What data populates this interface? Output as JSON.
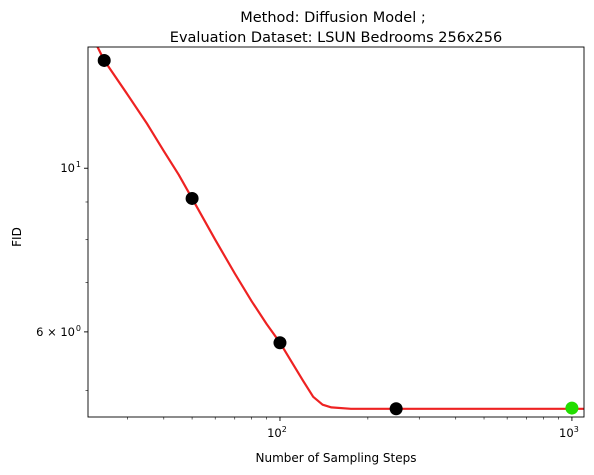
{
  "chart_data": {
    "type": "scatter",
    "title_line1": "Method: Diffusion Model ;",
    "title_line2": "Evaluation Dataset: LSUN Bedrooms 256x256",
    "xlabel": "Number of Sampling Steps",
    "ylabel": "FID",
    "x_scale": "log",
    "y_scale": "log",
    "xlim": [
      22,
      1100
    ],
    "ylim": [
      4.6,
      14.6
    ],
    "x_ticks": [
      {
        "value": 100,
        "base": "10",
        "exp": "2"
      },
      {
        "value": 1000,
        "base": "10",
        "exp": "3"
      }
    ],
    "y_ticks": [
      {
        "value": 10,
        "label": "10",
        "exp": "1"
      },
      {
        "value": 6,
        "label": "6 × 10",
        "exp": "0"
      }
    ],
    "points": [
      {
        "x": 25,
        "y": 14.0,
        "color": "#000000"
      },
      {
        "x": 50,
        "y": 9.1,
        "color": "#000000"
      },
      {
        "x": 100,
        "y": 5.8,
        "color": "#000000"
      },
      {
        "x": 250,
        "y": 4.72,
        "color": "#000000"
      },
      {
        "x": 1000,
        "y": 4.73,
        "color": "#22dd00"
      }
    ],
    "fit_curve": {
      "color": "#ee2222",
      "points": [
        [
          22,
          15.5
        ],
        [
          25,
          14.0
        ],
        [
          30,
          12.6
        ],
        [
          35,
          11.5
        ],
        [
          40,
          10.55
        ],
        [
          45,
          9.8
        ],
        [
          50,
          9.1
        ],
        [
          60,
          8.0
        ],
        [
          70,
          7.2
        ],
        [
          80,
          6.6
        ],
        [
          90,
          6.15
        ],
        [
          100,
          5.8
        ],
        [
          110,
          5.45
        ],
        [
          120,
          5.15
        ],
        [
          130,
          4.9
        ],
        [
          140,
          4.78
        ],
        [
          150,
          4.74
        ],
        [
          175,
          4.72
        ],
        [
          250,
          4.72
        ],
        [
          500,
          4.72
        ],
        [
          1000,
          4.72
        ],
        [
          1100,
          4.72
        ]
      ]
    }
  }
}
